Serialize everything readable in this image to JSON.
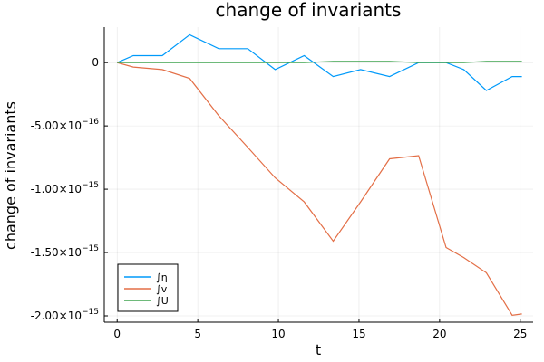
{
  "chart_data": {
    "type": "line",
    "title": "change of invariants",
    "xlabel": "t",
    "ylabel": "change of invariants",
    "xlim": [
      -0.8,
      25.8
    ],
    "ylim": [
      -2.05e-15,
      2.8e-16
    ],
    "xticks": [
      0,
      5,
      10,
      15,
      20,
      25
    ],
    "xtick_labels": [
      "0",
      "5",
      "10",
      "15",
      "20",
      "25"
    ],
    "yticks": [
      0,
      -5e-16,
      -1e-15,
      -1.5e-15,
      -2e-15
    ],
    "ytick_labels": [
      {
        "mantissa": "0",
        "exponent": ""
      },
      {
        "mantissa": "-5.00×10",
        "exponent": "−16"
      },
      {
        "mantissa": "-1.00×10",
        "exponent": "−15"
      },
      {
        "mantissa": "-1.50×10",
        "exponent": "−15"
      },
      {
        "mantissa": "-2.00×10",
        "exponent": "−15"
      }
    ],
    "grid": true,
    "legend_position": "bottom-left",
    "series": [
      {
        "name": "∫η",
        "color": "#009AFA",
        "x": [
          0,
          1.0,
          2.8,
          4.5,
          6.3,
          8.1,
          9.8,
          11.6,
          13.4,
          15.1,
          16.9,
          18.7,
          20.4,
          21.5,
          22.9,
          24.5,
          25.1
        ],
        "y": [
          0,
          5.5e-17,
          5.5e-17,
          2.2e-16,
          1.1e-16,
          1.1e-16,
          -5.5e-17,
          5.5e-17,
          -1.1e-16,
          -5.5e-17,
          -1.1e-16,
          0,
          0,
          -5.5e-17,
          -2.2e-16,
          -1.1e-16,
          -1.1e-16
        ]
      },
      {
        "name": "∫v",
        "color": "#E36F47",
        "x": [
          0,
          1.0,
          2.8,
          4.5,
          6.3,
          8.1,
          9.8,
          11.6,
          13.4,
          15.1,
          16.9,
          18.7,
          20.4,
          21.5,
          22.9,
          24.5,
          25.1
        ],
        "y": [
          0,
          -3.5e-17,
          -5.5e-17,
          -1.25e-16,
          -4.2e-16,
          -6.7e-16,
          -9.1e-16,
          -1.1e-15,
          -1.41e-15,
          -1.1e-15,
          -7.6e-16,
          -7.35e-16,
          -1.46e-15,
          -1.54e-15,
          -1.66e-15,
          -1.995e-15,
          -1.985e-15
        ]
      },
      {
        "name": "∫U",
        "color": "#3EA44E",
        "x": [
          0,
          1.0,
          2.8,
          4.5,
          6.3,
          8.1,
          9.8,
          11.6,
          13.4,
          15.1,
          16.9,
          18.7,
          20.4,
          21.5,
          22.9,
          24.5,
          25.1
        ],
        "y": [
          0,
          0,
          0,
          0,
          0,
          0,
          0,
          0,
          1e-17,
          1e-17,
          1e-17,
          0,
          0,
          0,
          1e-17,
          1e-17,
          1e-17
        ]
      }
    ]
  }
}
